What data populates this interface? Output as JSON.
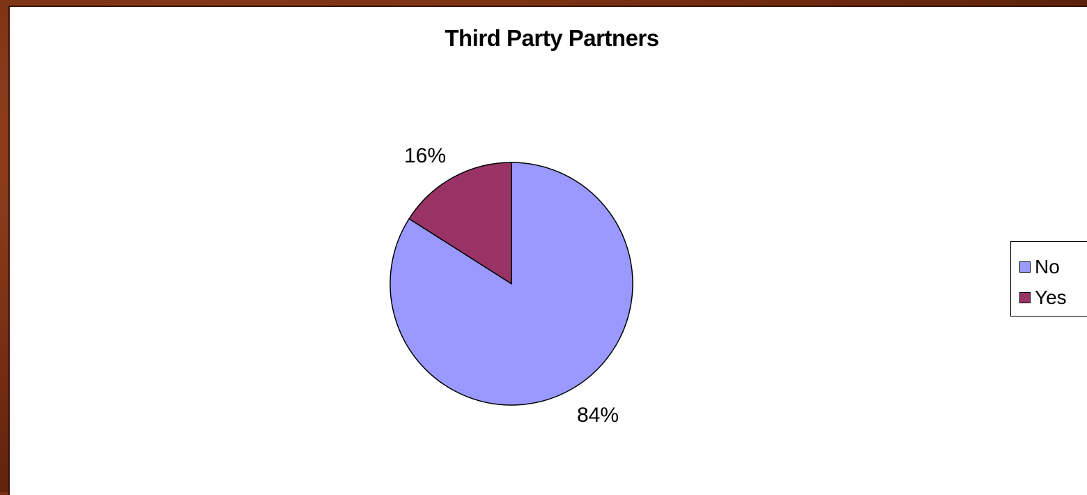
{
  "chart_data": {
    "type": "pie",
    "title": "Third Party Partners",
    "categories": [
      "No",
      "Yes"
    ],
    "values": [
      84,
      16
    ],
    "value_labels": [
      "84%",
      "16%"
    ],
    "colors": [
      "#9999ff",
      "#993366"
    ],
    "legend": {
      "placement": "right",
      "entries": [
        "No",
        "Yes"
      ]
    },
    "start_angle_deg": 0,
    "direction": "clockwise-from-top"
  }
}
